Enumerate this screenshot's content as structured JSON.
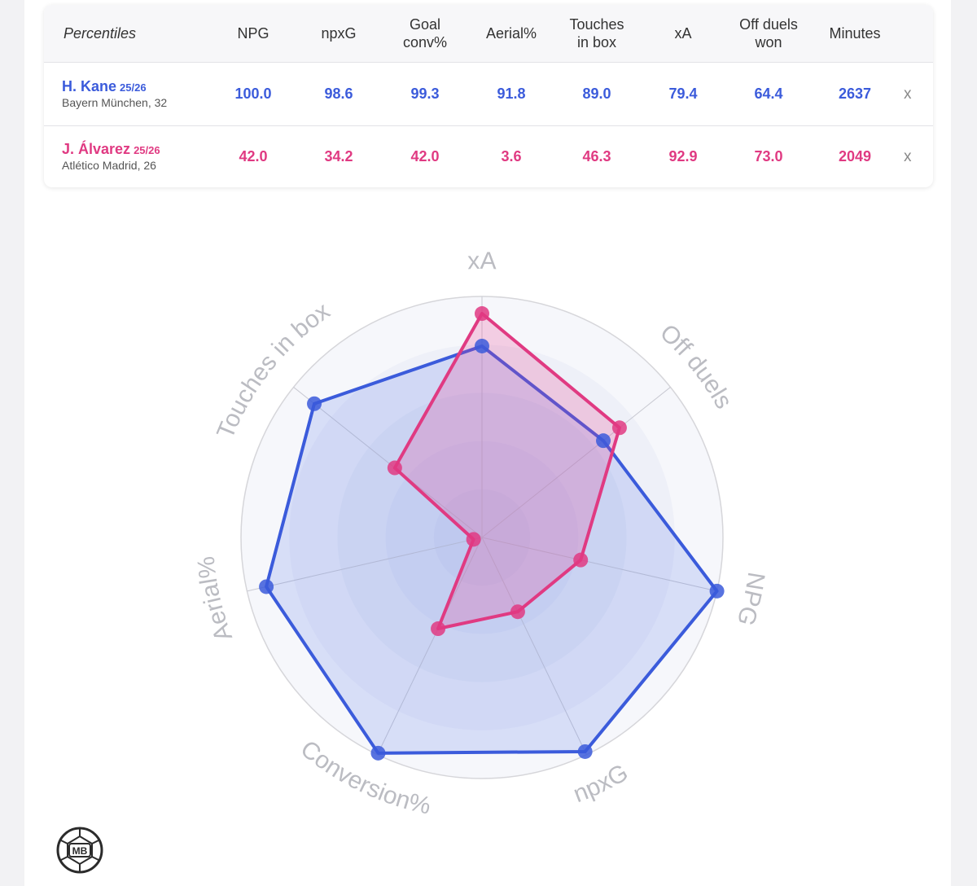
{
  "table": {
    "header_label": "Percentiles",
    "columns": [
      {
        "line1": "NPG",
        "line2": ""
      },
      {
        "line1": "npxG",
        "line2": ""
      },
      {
        "line1": "Goal",
        "line2": "conv%"
      },
      {
        "line1": "Aerial%",
        "line2": ""
      },
      {
        "line1": "Touches",
        "line2": "in box"
      },
      {
        "line1": "xA",
        "line2": ""
      },
      {
        "line1": "Off duels",
        "line2": "won"
      },
      {
        "line1": "Minutes",
        "line2": ""
      }
    ],
    "players": [
      {
        "name": "H. Kane",
        "season": "25/26",
        "team": "Bayern München, 32",
        "values": [
          "100.0",
          "98.6",
          "99.3",
          "91.8",
          "89.0",
          "79.4",
          "64.4",
          "2637"
        ],
        "remove": "x",
        "color": "#3b5bdb"
      },
      {
        "name": "J. Álvarez",
        "season": "25/26",
        "team": "Atlético Madrid, 26",
        "values": [
          "42.0",
          "34.2",
          "42.0",
          "3.6",
          "46.3",
          "92.9",
          "73.0",
          "2049"
        ],
        "remove": "x",
        "color": "#e03a82"
      }
    ]
  },
  "chart_data": {
    "type": "radar",
    "axes": [
      "xA",
      "Off duels",
      "NPG",
      "npxG",
      "Conversion%",
      "Aerial%",
      "Touches in box"
    ],
    "range": [
      0,
      100
    ],
    "series": [
      {
        "name": "H. Kane",
        "color": "#3b5bdb",
        "values": [
          79.4,
          64.4,
          100.0,
          98.6,
          99.3,
          91.8,
          89.0
        ]
      },
      {
        "name": "J. Álvarez",
        "color": "#e03a82",
        "values": [
          92.9,
          73.0,
          42.0,
          34.2,
          42.0,
          3.6,
          46.3
        ]
      }
    ]
  },
  "logo": {
    "text": "MB"
  }
}
